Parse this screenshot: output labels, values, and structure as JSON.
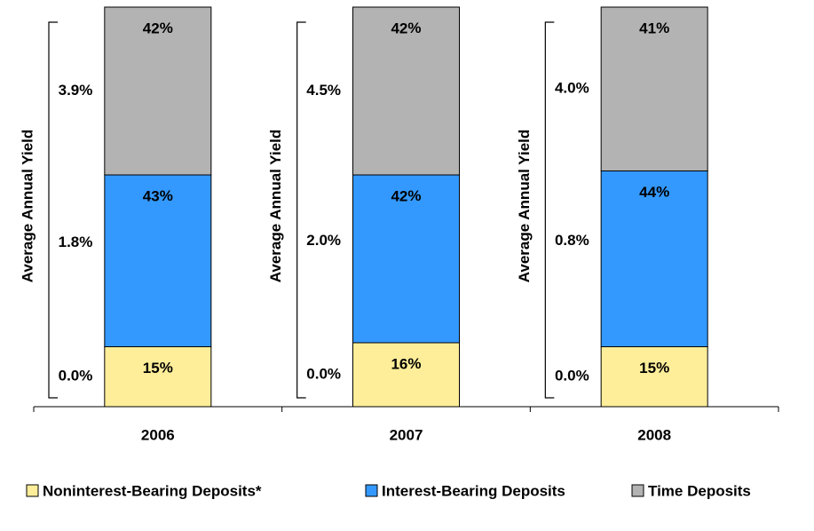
{
  "chart_data": {
    "type": "stacked_bar",
    "categories": [
      "2006",
      "2007",
      "2008"
    ],
    "y_label": "Average Annual Yield",
    "series": [
      {
        "name": "Noninterest-Bearing Deposits*",
        "color": "#ffee99",
        "values": [
          15,
          16,
          15
        ],
        "yield_labels": [
          "0.0%",
          "0.0%",
          "0.0%"
        ]
      },
      {
        "name": "Interest-Bearing Deposits",
        "color": "#3399ff",
        "values": [
          43,
          42,
          44
        ],
        "yield_labels": [
          "1.8%",
          "2.0%",
          "0.8%"
        ]
      },
      {
        "name": "Time Deposits",
        "color": "#b3b3b3",
        "values": [
          42,
          42,
          41
        ],
        "yield_labels": [
          "3.9%",
          "4.5%",
          "4.0%"
        ]
      }
    ],
    "value_labels_suffix_printed": true
  }
}
